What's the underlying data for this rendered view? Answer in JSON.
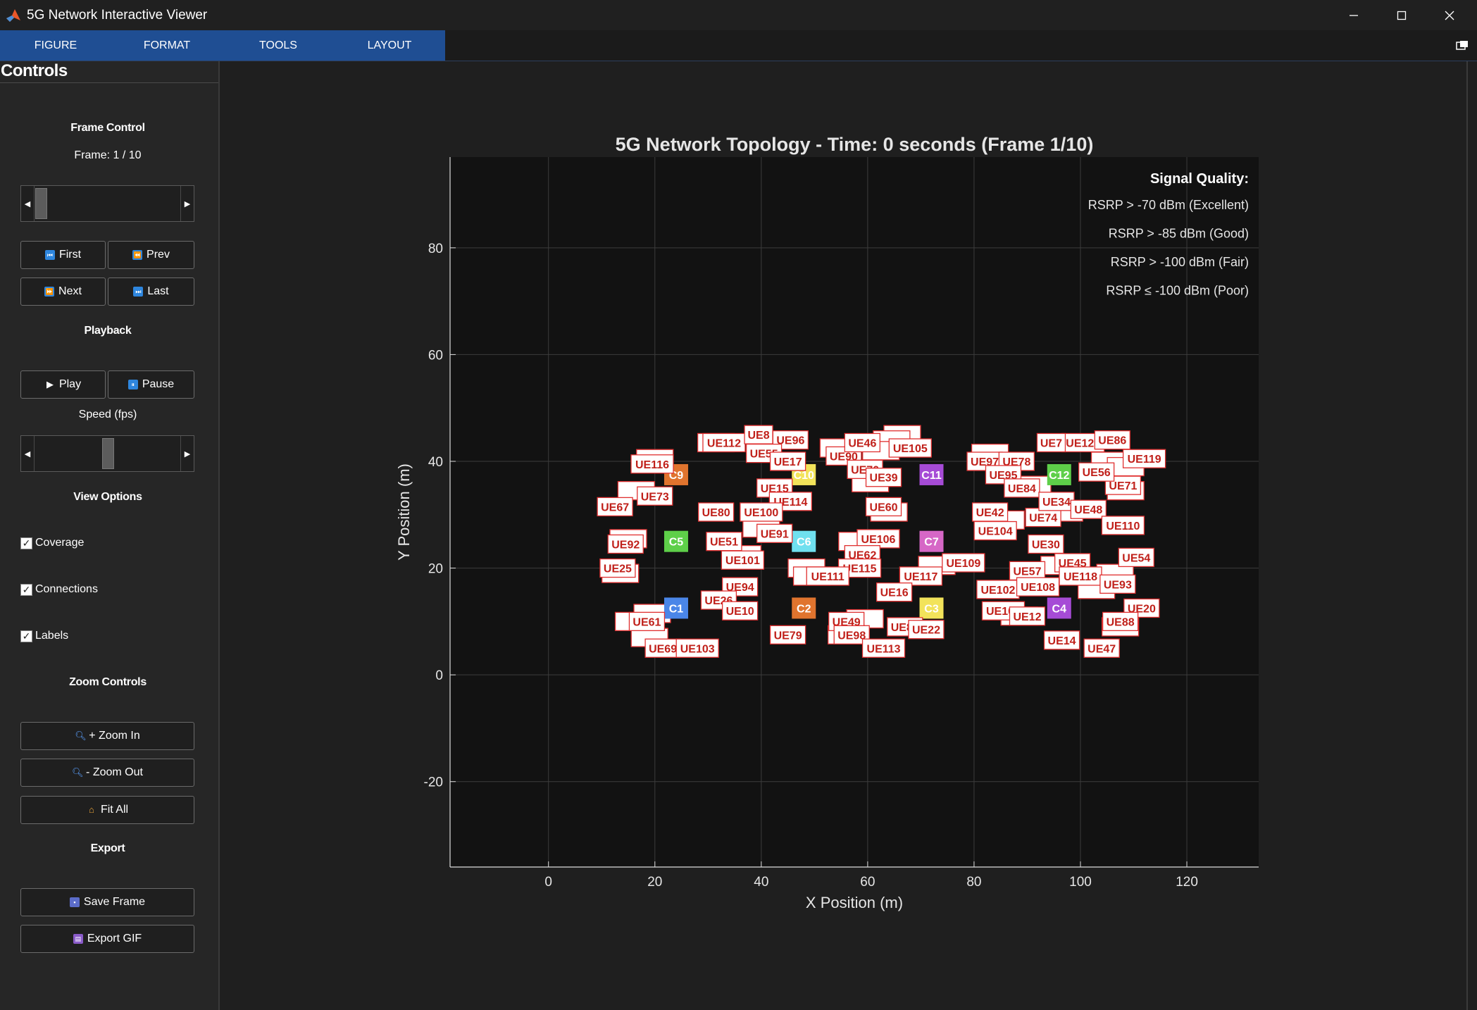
{
  "window": {
    "title": "5G Network Interactive Viewer"
  },
  "tabs": [
    {
      "label": "FIGURE"
    },
    {
      "label": "FORMAT"
    },
    {
      "label": "TOOLS"
    },
    {
      "label": "LAYOUT"
    }
  ],
  "controls": {
    "title": "Controls",
    "frame_control": {
      "heading": "Frame Control",
      "frame_text": "Frame: 1 / 10",
      "slider_value": 1,
      "slider_min": 1,
      "slider_max": 10,
      "first_label": "First",
      "prev_label": "Prev",
      "next_label": "Next",
      "last_label": "Last"
    },
    "playback": {
      "heading": "Playback",
      "play_label": "Play",
      "pause_label": "Pause",
      "speed_label": "Speed (fps)",
      "speed_fraction": 0.5
    },
    "view_options": {
      "heading": "View Options",
      "coverage_label": "Coverage",
      "coverage_checked": true,
      "connections_label": "Connections",
      "connections_checked": true,
      "labels_label": "Labels",
      "labels_checked": true
    },
    "zoom": {
      "heading": "Zoom Controls",
      "zoom_in_label": "+ Zoom In",
      "zoom_out_label": "- Zoom Out",
      "fit_all_label": "Fit All"
    },
    "export": {
      "heading": "Export",
      "save_frame_label": "Save Frame",
      "export_gif_label": "Export GIF"
    }
  },
  "icons": {
    "app": "matlab-logo-icon",
    "minimize": "minimize-icon",
    "maximize": "maximize-icon",
    "close": "close-icon",
    "collapse": "collapse-toolstrip-icon",
    "first": "skip-back-icon",
    "prev": "rewind-icon",
    "next": "fast-forward-icon",
    "last": "skip-forward-icon",
    "play": "play-icon",
    "pause": "pause-icon",
    "zoom_in": "magnifier-icon",
    "zoom_out": "magnifier-icon",
    "fit_all": "house-icon",
    "save": "floppy-disk-icon",
    "gif": "clapperboard-icon"
  },
  "colors": {
    "tab_bar": "#1f4e93",
    "axes_bg": "#121212",
    "label_edge": "#e03030",
    "label_text": "#c0201a"
  },
  "chart_data": {
    "type": "scatter",
    "title": "5G Network Topology - Time: 0 seconds (Frame 1/10)",
    "xlabel": "X Position (m)",
    "ylabel": "Y Position (m)",
    "xlim": [
      -18.5,
      133.5
    ],
    "ylim": [
      -36,
      97
    ],
    "xticks": [
      0,
      20,
      40,
      60,
      80,
      100,
      120
    ],
    "yticks": [
      -20,
      0,
      20,
      40,
      60,
      80
    ],
    "grid": true,
    "legend": {
      "placement": "top-right",
      "title": "Signal Quality:",
      "entries": [
        "RSRP > -70 dBm (Excellent)",
        "RSRP > -85 dBm (Good)",
        "RSRP > -100 dBm (Fair)",
        "RSRP ≤ -100 dBm (Poor)"
      ]
    },
    "cells": [
      {
        "name": "C1",
        "x": 24,
        "y": 12.5,
        "color": "#4a86e8"
      },
      {
        "name": "C2",
        "x": 48,
        "y": 12.5,
        "color": "#e0742e"
      },
      {
        "name": "C3",
        "x": 72,
        "y": 12.5,
        "color": "#f2e35a"
      },
      {
        "name": "C4",
        "x": 96,
        "y": 12.5,
        "color": "#a64bd6"
      },
      {
        "name": "C5",
        "x": 24,
        "y": 25,
        "color": "#5ecf49"
      },
      {
        "name": "C6",
        "x": 48,
        "y": 25,
        "color": "#6fe0ef"
      },
      {
        "name": "C7",
        "x": 72,
        "y": 25,
        "color": "#d667c6"
      },
      {
        "name": "C9",
        "x": 24,
        "y": 37.5,
        "color": "#e0742e"
      },
      {
        "name": "C10",
        "x": 48,
        "y": 37.5,
        "color": "#f2e35a"
      },
      {
        "name": "C11",
        "x": 72,
        "y": 37.5,
        "color": "#a64bd6"
      },
      {
        "name": "C12",
        "x": 96,
        "y": 37.5,
        "color": "#5ecf49"
      }
    ],
    "ues": [
      {
        "name": "UE116",
        "x": 19.5,
        "y": 39.5
      },
      {
        "name": "UE73",
        "x": 20,
        "y": 33.5
      },
      {
        "name": "UE67",
        "x": 12.5,
        "y": 31.5
      },
      {
        "name": "UE92",
        "x": 14.5,
        "y": 24.5
      },
      {
        "name": "UE25",
        "x": 13,
        "y": 20
      },
      {
        "name": "UE61",
        "x": 18.5,
        "y": 10
      },
      {
        "name": "UE69",
        "x": 21.5,
        "y": 5
      },
      {
        "name": "UE103",
        "x": 28,
        "y": 5
      },
      {
        "name": "UE112",
        "x": 33,
        "y": 43.5
      },
      {
        "name": "UE96",
        "x": 45.5,
        "y": 44
      },
      {
        "name": "UE8",
        "x": 39.5,
        "y": 45
      },
      {
        "name": "UE55",
        "x": 40.5,
        "y": 41.5
      },
      {
        "name": "UE17",
        "x": 45,
        "y": 40
      },
      {
        "name": "UE15",
        "x": 42.5,
        "y": 35
      },
      {
        "name": "UE114",
        "x": 45.5,
        "y": 32.5
      },
      {
        "name": "UE80",
        "x": 31.5,
        "y": 30.5
      },
      {
        "name": "UE100",
        "x": 40,
        "y": 30.5
      },
      {
        "name": "UE91",
        "x": 42.5,
        "y": 26.5
      },
      {
        "name": "UE51",
        "x": 33,
        "y": 25
      },
      {
        "name": "UE101",
        "x": 36.5,
        "y": 21.5
      },
      {
        "name": "UE94",
        "x": 36,
        "y": 16.5
      },
      {
        "name": "UE26",
        "x": 32,
        "y": 14
      },
      {
        "name": "UE10",
        "x": 36,
        "y": 12
      },
      {
        "name": "UE79",
        "x": 45,
        "y": 7.5
      },
      {
        "name": "UE90",
        "x": 55.5,
        "y": 41
      },
      {
        "name": "UE46",
        "x": 59,
        "y": 43.5
      },
      {
        "name": "UE105",
        "x": 68,
        "y": 42.5
      },
      {
        "name": "UE70",
        "x": 59.5,
        "y": 38.5
      },
      {
        "name": "UE39",
        "x": 63,
        "y": 37
      },
      {
        "name": "UE60",
        "x": 63,
        "y": 31.5
      },
      {
        "name": "UE106",
        "x": 62,
        "y": 25.5
      },
      {
        "name": "UE62",
        "x": 59,
        "y": 22.5
      },
      {
        "name": "UE115",
        "x": 58.5,
        "y": 20
      },
      {
        "name": "UE111",
        "x": 52.5,
        "y": 18.5
      },
      {
        "name": "UE117",
        "x": 70,
        "y": 18.5
      },
      {
        "name": "UE109",
        "x": 78,
        "y": 21
      },
      {
        "name": "UE16",
        "x": 65,
        "y": 15.5
      },
      {
        "name": "UE49",
        "x": 56,
        "y": 10
      },
      {
        "name": "UE98",
        "x": 57,
        "y": 7.5
      },
      {
        "name": "UE87",
        "x": 67,
        "y": 9
      },
      {
        "name": "UE22",
        "x": 71,
        "y": 8.5
      },
      {
        "name": "UE113",
        "x": 63,
        "y": 5
      },
      {
        "name": "UE97",
        "x": 82,
        "y": 40
      },
      {
        "name": "UE78",
        "x": 88,
        "y": 40
      },
      {
        "name": "UE95",
        "x": 85.5,
        "y": 37.5
      },
      {
        "name": "UE84",
        "x": 89,
        "y": 35
      },
      {
        "name": "UE42",
        "x": 83,
        "y": 30.5
      },
      {
        "name": "UE104",
        "x": 84,
        "y": 27
      },
      {
        "name": "UE74",
        "x": 93,
        "y": 29.5
      },
      {
        "name": "UE34",
        "x": 95.5,
        "y": 32.5
      },
      {
        "name": "UE48",
        "x": 101.5,
        "y": 31
      },
      {
        "name": "UE30",
        "x": 93.5,
        "y": 24.5
      },
      {
        "name": "UE110",
        "x": 108,
        "y": 28
      },
      {
        "name": "UE71",
        "x": 108,
        "y": 35.5
      },
      {
        "name": "UE56",
        "x": 103,
        "y": 38
      },
      {
        "name": "UE119",
        "x": 112,
        "y": 40.5
      },
      {
        "name": "UE120",
        "x": 100.5,
        "y": 43.5
      },
      {
        "name": "UE86",
        "x": 106,
        "y": 44
      },
      {
        "name": "UE7",
        "x": 94.5,
        "y": 43.5
      },
      {
        "name": "UE57",
        "x": 90,
        "y": 19.5
      },
      {
        "name": "UE45",
        "x": 98.5,
        "y": 21
      },
      {
        "name": "UE118",
        "x": 100,
        "y": 18.5
      },
      {
        "name": "UE93",
        "x": 107,
        "y": 17
      },
      {
        "name": "UE54",
        "x": 110.5,
        "y": 22
      },
      {
        "name": "UE102",
        "x": 84.5,
        "y": 16
      },
      {
        "name": "UE108",
        "x": 92,
        "y": 16.5
      },
      {
        "name": "UE107",
        "x": 85.5,
        "y": 12
      },
      {
        "name": "UE12",
        "x": 90,
        "y": 11
      },
      {
        "name": "UE20",
        "x": 111.5,
        "y": 12.5
      },
      {
        "name": "UE88",
        "x": 107.5,
        "y": 10
      },
      {
        "name": "UE14",
        "x": 96.5,
        "y": 6.5
      },
      {
        "name": "UE47",
        "x": 104,
        "y": 5
      }
    ],
    "ue_labels_obscured": [
      {
        "x": 20,
        "y": 40.5
      },
      {
        "x": 16.5,
        "y": 34.5
      },
      {
        "x": 15,
        "y": 25.5
      },
      {
        "x": 13.5,
        "y": 19
      },
      {
        "x": 16,
        "y": 10
      },
      {
        "x": 19.5,
        "y": 11.5
      },
      {
        "x": 19,
        "y": 7
      },
      {
        "x": 31.5,
        "y": 43.5
      },
      {
        "x": 40,
        "y": 27.5
      },
      {
        "x": 36.5,
        "y": 22.5
      },
      {
        "x": 48.5,
        "y": 20
      },
      {
        "x": 49.5,
        "y": 18.5
      },
      {
        "x": 54.5,
        "y": 42.5
      },
      {
        "x": 66.5,
        "y": 45
      },
      {
        "x": 64.5,
        "y": 44
      },
      {
        "x": 62.5,
        "y": 42
      },
      {
        "x": 60.5,
        "y": 36
      },
      {
        "x": 64,
        "y": 30.5
      },
      {
        "x": 58,
        "y": 25
      },
      {
        "x": 59.5,
        "y": 10.5
      },
      {
        "x": 56,
        "y": 7.5
      },
      {
        "x": 73,
        "y": 20.5
      },
      {
        "x": 83,
        "y": 41.5
      },
      {
        "x": 91,
        "y": 35.5
      },
      {
        "x": 86,
        "y": 29
      },
      {
        "x": 97,
        "y": 30.5
      },
      {
        "x": 105.5,
        "y": 40
      },
      {
        "x": 108.5,
        "y": 39
      },
      {
        "x": 108.5,
        "y": 34.5
      },
      {
        "x": 96,
        "y": 20.5
      },
      {
        "x": 103,
        "y": 16
      },
      {
        "x": 106.5,
        "y": 19
      },
      {
        "x": 88.5,
        "y": 11
      },
      {
        "x": 107.5,
        "y": 9
      }
    ]
  }
}
